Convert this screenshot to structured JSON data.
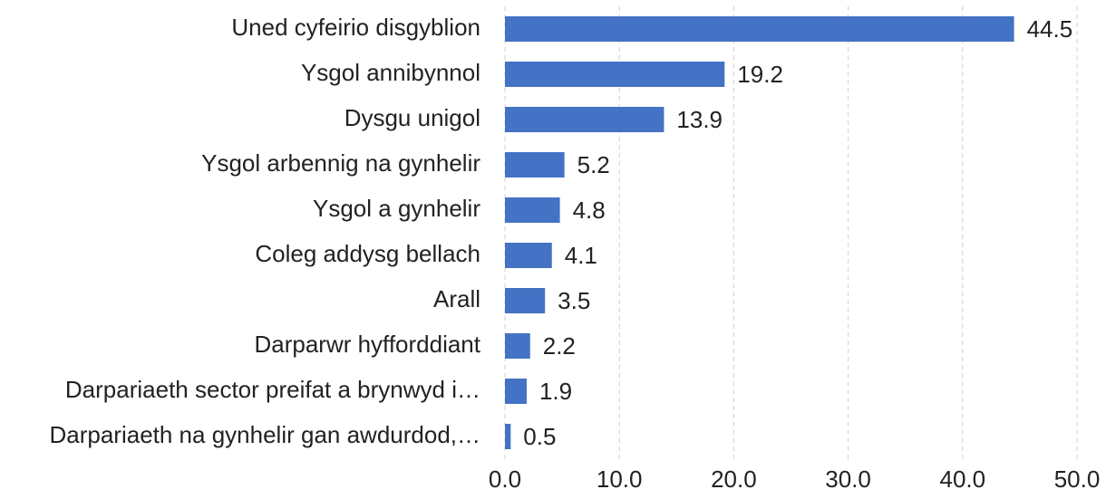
{
  "chart_data": {
    "type": "hbar",
    "categories": [
      "Uned cyfeirio disgyblion",
      "Ysgol annibynnol",
      "Dysgu unigol",
      "Ysgol arbennig na gynhelir",
      "Ysgol a gynhelir",
      "Coleg addysg bellach",
      "Arall",
      "Darparwr hyfforddiant",
      "Darpariaeth sector preifat a brynwyd i…",
      "Darpariaeth na gynhelir gan awdurdod,…"
    ],
    "values": [
      44.5,
      19.2,
      13.9,
      5.2,
      4.8,
      4.1,
      3.5,
      2.2,
      1.9,
      0.5
    ],
    "color": "#4472c4",
    "xlim": [
      0,
      50
    ],
    "xticks": [
      {
        "value": 0,
        "label": "0.0"
      },
      {
        "value": 10,
        "label": "10.0"
      },
      {
        "value": 20,
        "label": "20.0"
      },
      {
        "value": 30,
        "label": "30.0"
      },
      {
        "value": 40,
        "label": "40.0"
      },
      {
        "value": 50,
        "label": "50.0"
      }
    ],
    "grid": true
  }
}
